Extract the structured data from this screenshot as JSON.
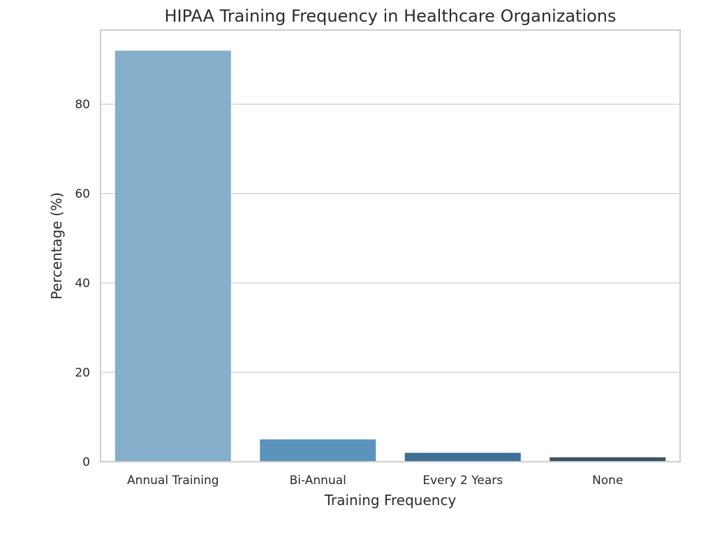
{
  "chart_data": {
    "type": "bar",
    "title": "HIPAA Training Frequency in Healthcare Organizations",
    "xlabel": "Training Frequency",
    "ylabel": "Percentage (%)",
    "categories": [
      "Annual Training",
      "Bi-Annual",
      "Every 2 Years",
      "None"
    ],
    "values": [
      92,
      5,
      2,
      1
    ],
    "colors": [
      "#86afcb",
      "#5a93bb",
      "#3f6f93",
      "#3e5465"
    ],
    "ylim": [
      0,
      96.6
    ],
    "yticks": [
      0,
      20,
      40,
      60,
      80
    ],
    "grid": true
  }
}
